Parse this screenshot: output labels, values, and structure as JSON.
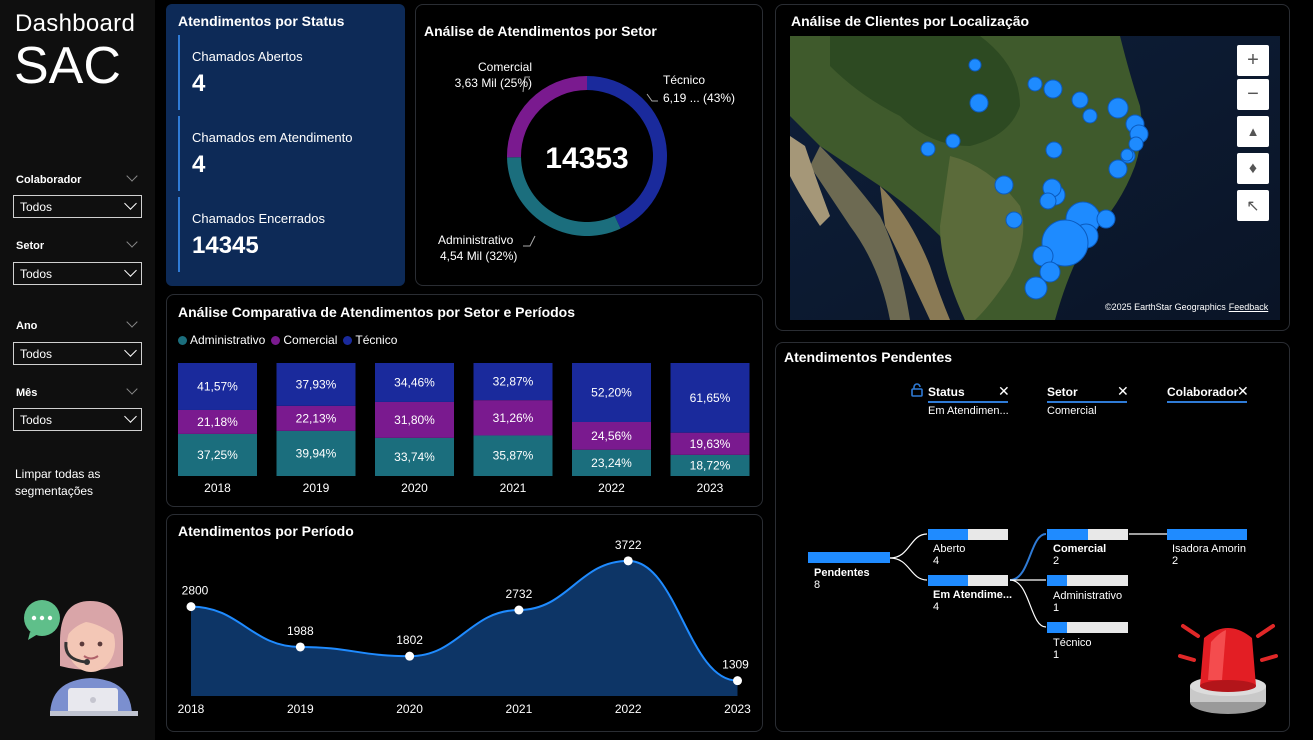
{
  "sidebar": {
    "title_line1": "Dashboard",
    "title_line2": "SAC",
    "filters": [
      {
        "label": "Colaborador",
        "value": "Todos"
      },
      {
        "label": "Setor",
        "value": "Todos"
      },
      {
        "label": "Ano",
        "value": "Todos"
      },
      {
        "label": "Mês",
        "value": "Todos"
      }
    ],
    "clear_label": "Limpar todas as segmentações"
  },
  "status": {
    "title": "Atendimentos por Status",
    "kpis": [
      {
        "label": "Chamados Abertos",
        "value": "4"
      },
      {
        "label": "Chamados em Atendimento",
        "value": "4"
      },
      {
        "label": "Chamados Encerrados",
        "value": "14345"
      }
    ]
  },
  "donut": {
    "title": "Análise de Atendimentos por Setor",
    "total": "14353",
    "labels": {
      "comercial_name": "Comercial",
      "comercial_val": "3,63 Mil (25%)",
      "tecnico_name": "Técnico",
      "tecnico_val": "6,19 ... (43%)",
      "admin_name": "Administrativo",
      "admin_val": "4,54 Mil (32%)"
    }
  },
  "map": {
    "title": "Análise de Clientes por Localização",
    "credit": "©2025 EarthStar Geographics",
    "feedback": "Feedback",
    "controls": [
      {
        "name": "zoom-in-icon",
        "glyph": "+"
      },
      {
        "name": "zoom-out-icon",
        "glyph": "−"
      },
      {
        "name": "tilt-icon",
        "glyph": "▲"
      },
      {
        "name": "compass-icon",
        "glyph": "♦"
      },
      {
        "name": "select-arrow-icon",
        "glyph": "↖"
      }
    ]
  },
  "pending": {
    "title": "Atendimentos Pendentes",
    "headers": [
      {
        "label": "Status",
        "sub": "Em Atendimen..."
      },
      {
        "label": "Setor",
        "sub": "Comercial"
      },
      {
        "label": "Colaborador",
        "sub": ""
      }
    ],
    "nodes": {
      "root": {
        "label": "Pendentes",
        "count": "8"
      },
      "aberto": {
        "label": "Aberto",
        "count": "4"
      },
      "em": {
        "label": "Em Atendime...",
        "count": "4"
      },
      "comercial": {
        "label": "Comercial",
        "count": "2"
      },
      "administrativo": {
        "label": "Administrativo",
        "count": "1"
      },
      "tecnico": {
        "label": "Técnico",
        "count": "1"
      },
      "isadora": {
        "label": "Isadora Amorin",
        "count": "2"
      }
    }
  },
  "colors": {
    "administrativo": "#1b6e7d",
    "comercial": "#7a1a8f",
    "tecnico": "#1a2a9c",
    "accent": "#1f8bff"
  },
  "chart_data": [
    {
      "type": "bar",
      "title": "Análise Comparativa de Atendimentos por Setor e Períodos",
      "stacked": "100%",
      "categories": [
        "2018",
        "2019",
        "2020",
        "2021",
        "2022",
        "2023"
      ],
      "series": [
        {
          "name": "Administrativo",
          "values": [
            37.25,
            39.94,
            33.74,
            35.87,
            23.24,
            18.72
          ],
          "labels": [
            "37,25%",
            "39,94%",
            "33,74%",
            "35,87%",
            "23,24%",
            "18,72%"
          ]
        },
        {
          "name": "Comercial",
          "values": [
            21.18,
            22.13,
            31.8,
            31.26,
            24.56,
            19.63
          ],
          "labels": [
            "21,18%",
            "22,13%",
            "31,80%",
            "31,26%",
            "24,56%",
            "19,63%"
          ]
        },
        {
          "name": "Técnico",
          "values": [
            41.57,
            37.93,
            34.46,
            32.87,
            52.2,
            61.65
          ],
          "labels": [
            "41,57%",
            "37,93%",
            "34,46%",
            "32,87%",
            "52,20%",
            "61,65%"
          ]
        }
      ],
      "legend": "top-left"
    },
    {
      "type": "area",
      "title": "Atendimentos por Período",
      "x": [
        "2018",
        "2019",
        "2020",
        "2021",
        "2022",
        "2023"
      ],
      "values": [
        2800,
        1988,
        1802,
        2732,
        3722,
        1309
      ],
      "labels": [
        "2800",
        "1988",
        "1802",
        "2732",
        "3722",
        "1309"
      ],
      "ylim": [
        1000,
        3900
      ]
    },
    {
      "type": "pie",
      "title": "Análise de Atendimentos por Setor",
      "categories": [
        "Técnico",
        "Administrativo",
        "Comercial"
      ],
      "values": [
        6190,
        4540,
        3630
      ],
      "total": 14353
    }
  ]
}
